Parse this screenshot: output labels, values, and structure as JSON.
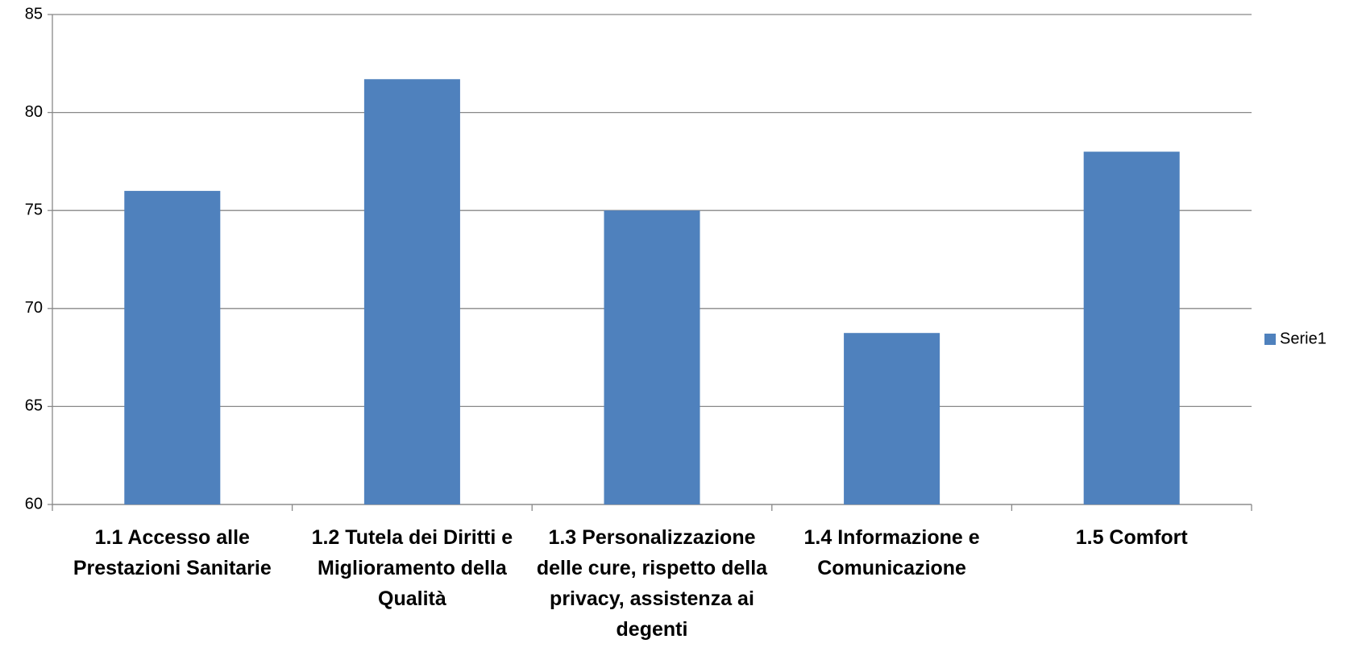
{
  "chart_data": {
    "type": "bar",
    "categories": [
      "1.1 Accesso alle Prestazioni Sanitarie",
      "1.2 Tutela dei Diritti e Miglioramento della Qualità",
      "1.3 Personalizzazione delle cure, rispetto della privacy, assistenza ai degenti",
      "1.4 Informazione e Comunicazione",
      "1.5 Comfort"
    ],
    "series": [
      {
        "name": "Serie1",
        "color": "#4f81bd",
        "values": [
          76,
          81.7,
          75,
          68.75,
          78
        ]
      }
    ],
    "ylim": [
      60,
      85
    ],
    "yticks": [
      60,
      65,
      70,
      75,
      80,
      85
    ],
    "grid": true,
    "legend": "right"
  }
}
